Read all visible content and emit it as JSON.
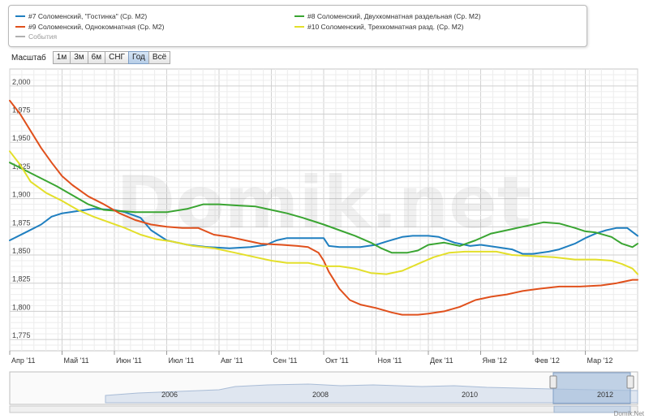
{
  "legend": {
    "items": [
      {
        "label": "#7 Соломенский, \"Гостинка\" (Ср. М2)",
        "color": "#1f7fc0"
      },
      {
        "label": "#8 Соломенский, Двухкомнатная раздельная (Ср. М2)",
        "color": "#3aa532"
      },
      {
        "label": "#9 Соломенский, Однокомнатная (Ср. М2)",
        "color": "#e0501c"
      },
      {
        "label": "#10 Соломенский, Трехкомнатная разд. (Ср. М2)",
        "color": "#e3df2a"
      },
      {
        "label": "События",
        "color": "#b0b0b0"
      }
    ]
  },
  "zoom": {
    "label": "Масштаб",
    "buttons": [
      "1м",
      "3м",
      "6м",
      "СНГ",
      "Год",
      "Всё"
    ],
    "active": "Год"
  },
  "watermark": "Domik.net",
  "copyright": "Domik.Net",
  "navigator": {
    "years": [
      "2006",
      "2008",
      "2010",
      "2012"
    ]
  },
  "chart_data": {
    "type": "line",
    "x_labels": [
      "Апр '11",
      "Май '11",
      "Июн '11",
      "Июл '11",
      "Авг '11",
      "Сен '11",
      "Окт '11",
      "Ноя '11",
      "Дек '11",
      "Янв '12",
      "Фев '12",
      "Мар '12"
    ],
    "y_ticks": [
      "2,000",
      "1,975",
      "1,950",
      "1,925",
      "1,900",
      "1,875",
      "1,850",
      "1,825",
      "1,800",
      "1,775"
    ],
    "ylim": [
      1765,
      2015
    ],
    "x_range": [
      0,
      12
    ],
    "grid": true,
    "series": [
      {
        "name": "#7 Соломенский, \"Гостинка\" (Ср. М2)",
        "color": "#1f7fc0",
        "x": [
          0,
          0.3,
          0.6,
          0.8,
          1.0,
          1.3,
          1.6,
          2.0,
          2.2,
          2.5,
          2.7,
          3.0,
          3.4,
          3.8,
          4.2,
          4.6,
          4.9,
          5.1,
          5.3,
          5.7,
          6.0,
          6.1,
          6.3,
          6.7,
          7.0,
          7.2,
          7.5,
          7.7,
          8.0,
          8.2,
          8.5,
          8.8,
          9.0,
          9.3,
          9.6,
          9.8,
          10.0,
          10.3,
          10.5,
          10.8,
          11.0,
          11.2,
          11.4,
          11.6,
          11.8,
          12.0
        ],
        "y": [
          1863,
          1870,
          1877,
          1884,
          1887,
          1889,
          1891,
          1890,
          1888,
          1883,
          1872,
          1863,
          1859,
          1857,
          1856,
          1857,
          1859,
          1863,
          1865,
          1865,
          1865,
          1858,
          1857,
          1857,
          1859,
          1862,
          1866,
          1867,
          1867,
          1866,
          1861,
          1858,
          1859,
          1857,
          1855,
          1851,
          1851,
          1853,
          1855,
          1860,
          1865,
          1869,
          1872,
          1874,
          1874,
          1867
        ]
      },
      {
        "name": "#8 Соломенский, Двухкомнатная раздельная (Ср. М2)",
        "color": "#3aa532",
        "x": [
          0,
          0.3,
          0.6,
          0.9,
          1.2,
          1.5,
          1.8,
          2.1,
          2.4,
          2.7,
          3.0,
          3.4,
          3.7,
          4.0,
          4.3,
          4.7,
          5.0,
          5.3,
          5.6,
          6.0,
          6.3,
          6.6,
          6.9,
          7.1,
          7.3,
          7.6,
          7.8,
          8.0,
          8.3,
          8.6,
          8.9,
          9.2,
          9.5,
          9.8,
          10.0,
          10.2,
          10.5,
          10.8,
          11.0,
          11.2,
          11.5,
          11.7,
          11.9,
          12.0
        ],
        "y": [
          1932,
          1925,
          1918,
          1911,
          1903,
          1895,
          1890,
          1889,
          1888,
          1888,
          1888,
          1891,
          1895,
          1895,
          1894,
          1893,
          1890,
          1887,
          1883,
          1877,
          1872,
          1867,
          1861,
          1856,
          1852,
          1852,
          1854,
          1859,
          1861,
          1858,
          1863,
          1869,
          1872,
          1875,
          1877,
          1879,
          1878,
          1874,
          1871,
          1870,
          1866,
          1860,
          1857,
          1860
        ]
      },
      {
        "name": "#9 Соломенский, Однокомнатная (Ср. М2)",
        "color": "#e0501c",
        "x": [
          0,
          0.2,
          0.4,
          0.6,
          0.8,
          1.0,
          1.2,
          1.5,
          1.8,
          2.1,
          2.4,
          2.7,
          3.0,
          3.3,
          3.6,
          3.9,
          4.2,
          4.5,
          4.8,
          5.2,
          5.5,
          5.7,
          5.9,
          6.0,
          6.1,
          6.3,
          6.5,
          6.7,
          7.0,
          7.3,
          7.5,
          7.8,
          8.0,
          8.3,
          8.6,
          8.9,
          9.2,
          9.5,
          9.8,
          10.1,
          10.5,
          10.9,
          11.3,
          11.6,
          11.9,
          12.0
        ],
        "y": [
          1987,
          1975,
          1960,
          1945,
          1932,
          1920,
          1912,
          1902,
          1895,
          1887,
          1881,
          1877,
          1875,
          1874,
          1874,
          1868,
          1866,
          1863,
          1860,
          1859,
          1858,
          1857,
          1852,
          1845,
          1835,
          1820,
          1810,
          1806,
          1803,
          1799,
          1797,
          1797,
          1798,
          1800,
          1804,
          1810,
          1813,
          1815,
          1818,
          1820,
          1822,
          1822,
          1823,
          1825,
          1828,
          1828
        ]
      },
      {
        "name": "#10 Соломенский, Трехкомнатная разд. (Ср. М2)",
        "color": "#e3df2a",
        "x": [
          0,
          0.2,
          0.4,
          0.7,
          1.0,
          1.3,
          1.6,
          1.9,
          2.2,
          2.5,
          2.8,
          3.1,
          3.5,
          3.9,
          4.3,
          4.7,
          5.0,
          5.3,
          5.7,
          6.0,
          6.3,
          6.6,
          6.9,
          7.2,
          7.5,
          7.8,
          8.1,
          8.4,
          8.7,
          9.0,
          9.3,
          9.6,
          10.0,
          10.4,
          10.8,
          11.2,
          11.5,
          11.7,
          11.9,
          12.0
        ],
        "y": [
          1942,
          1930,
          1915,
          1905,
          1898,
          1890,
          1884,
          1879,
          1874,
          1868,
          1864,
          1862,
          1858,
          1856,
          1852,
          1848,
          1845,
          1843,
          1843,
          1840,
          1840,
          1838,
          1834,
          1833,
          1836,
          1842,
          1848,
          1852,
          1853,
          1853,
          1853,
          1850,
          1849,
          1848,
          1846,
          1846,
          1845,
          1842,
          1838,
          1833
        ]
      }
    ]
  }
}
